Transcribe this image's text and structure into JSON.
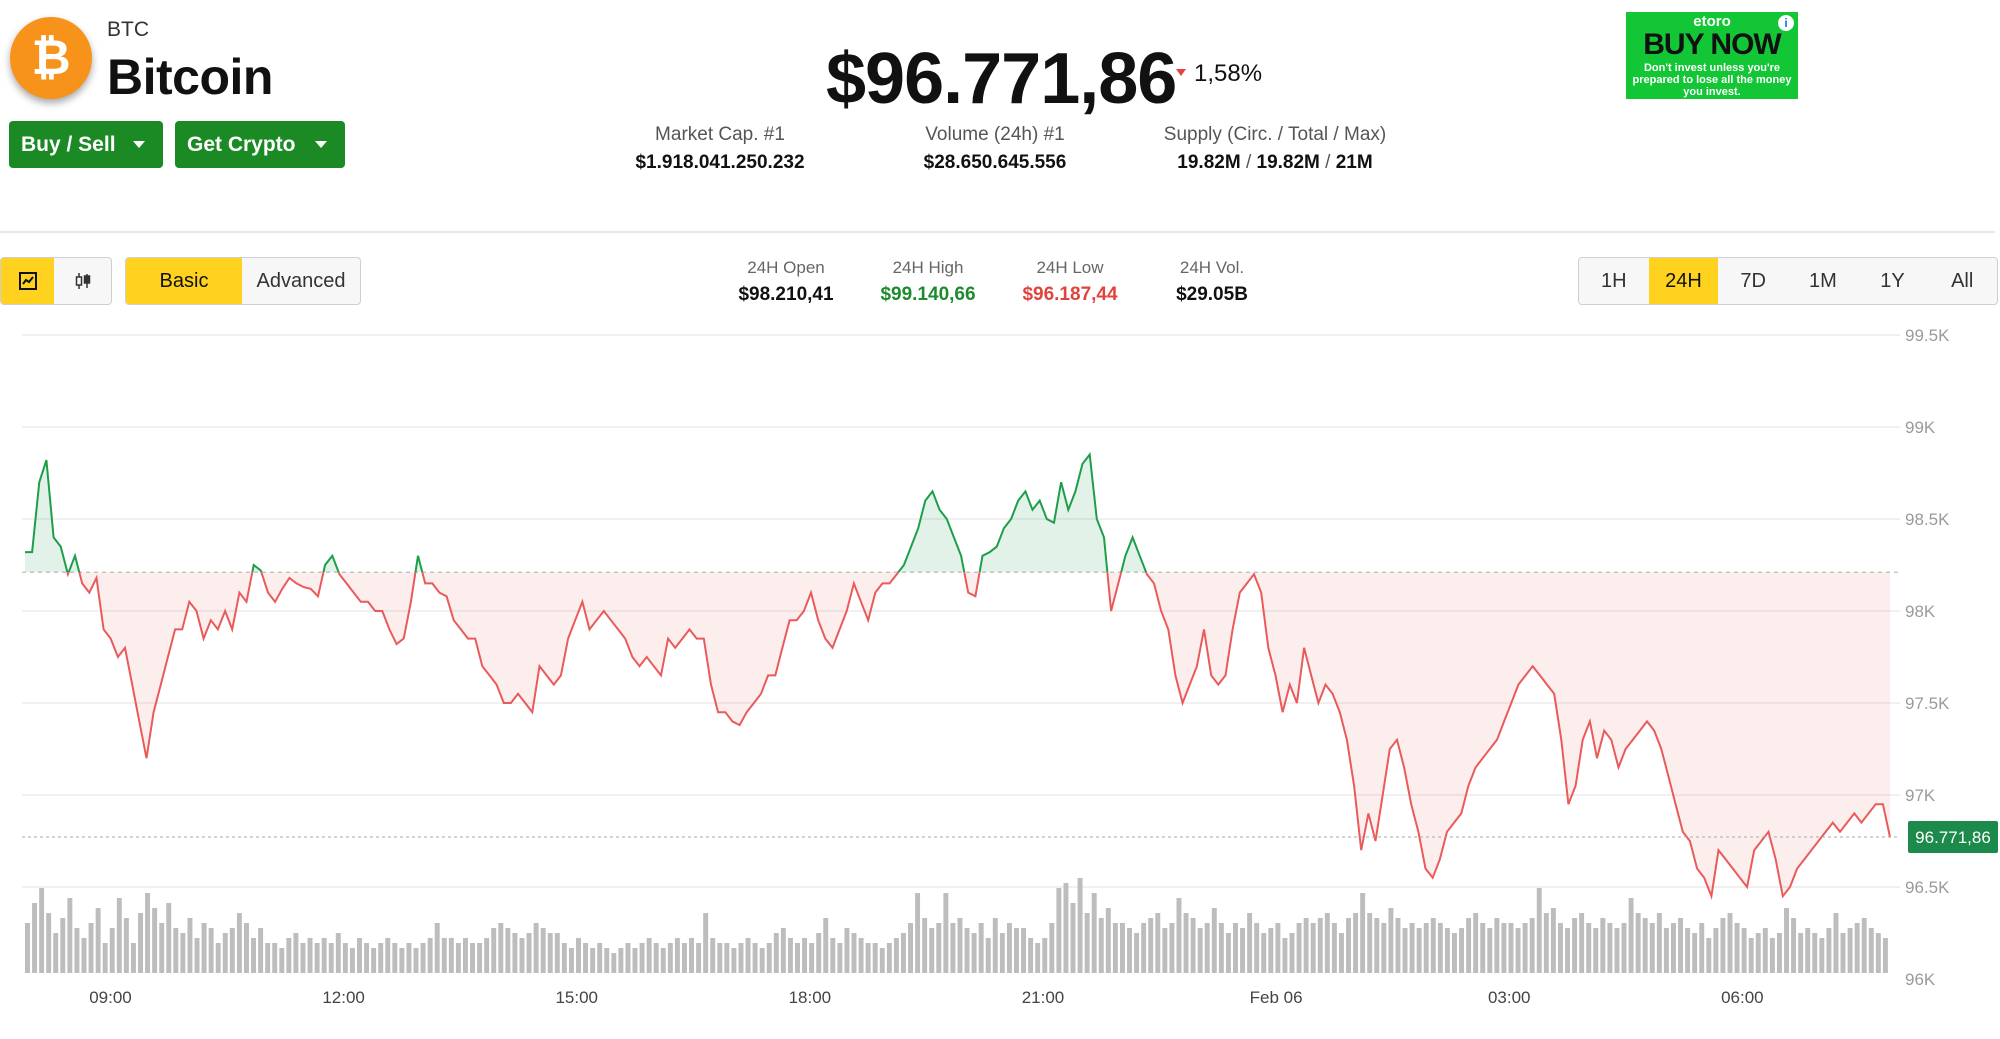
{
  "coin": {
    "symbol": "BTC",
    "name": "Bitcoin",
    "logo_glyph": "₿",
    "logo_color": "#f7931a"
  },
  "actions": {
    "buy_sell": "Buy / Sell",
    "get_crypto": "Get Crypto"
  },
  "price": {
    "value": "$96.771,86",
    "change": "1,58%",
    "change_direction": "down"
  },
  "stats": {
    "market_cap_label": "Market Cap. #1",
    "market_cap_value": "$1.918.041.250.232",
    "volume_label": "Volume (24h) #1",
    "volume_value": "$28.650.645.556",
    "supply_label": "Supply (Circ. / Total / Max)",
    "supply_circ": "19.82M",
    "supply_total": "19.82M",
    "supply_max": "21M",
    "supply_sep": "/"
  },
  "ad": {
    "brand": "etoro",
    "headline": "BUY NOW",
    "disclaimer": "Don't invest unless you're prepared to lose all the money you invest.",
    "info": "i"
  },
  "toolbar": {
    "chart_type_icons": [
      "line-chart-icon",
      "candlestick-icon"
    ],
    "modes": [
      "Basic",
      "Advanced"
    ],
    "active_mode": "Basic",
    "ranges": [
      "1H",
      "24H",
      "7D",
      "1M",
      "1Y",
      "All"
    ],
    "active_range": "24H"
  },
  "ohlc": {
    "open_label": "24H Open",
    "open_value": "$98.210,41",
    "high_label": "24H High",
    "high_value": "$99.140,66",
    "low_label": "24H Low",
    "low_value": "$96.187,44",
    "vol_label": "24H Vol.",
    "vol_value": "$29.05B"
  },
  "colors": {
    "up": "#1d9e4a",
    "down": "#ea5a5a",
    "accent": "#ffd21f",
    "button": "#1b8a25"
  },
  "chart_data": {
    "type": "line",
    "y_tick_labels": [
      "99.5K",
      "99K",
      "98.5K",
      "98K",
      "97.5K",
      "97K",
      "96.5K",
      "96K"
    ],
    "y_ticks": [
      99500,
      99000,
      98500,
      98000,
      97500,
      97000,
      96500,
      96000
    ],
    "ylim": [
      96000,
      99500
    ],
    "x_tick_labels": [
      "09:00",
      "12:00",
      "15:00",
      "18:00",
      "21:00",
      "Feb 06",
      "03:00",
      "06:00"
    ],
    "x_tick_hours": [
      1.1,
      4.1,
      7.1,
      10.1,
      13.1,
      16.1,
      19.1,
      22.1
    ],
    "x_range_hours": [
      0,
      24
    ],
    "baseline": 98210.41,
    "current_price_label": "96.771,86",
    "series": [
      {
        "values": [
          98320,
          98320,
          98700,
          98820,
          98400,
          98350,
          98200,
          98300,
          98150,
          98100,
          98180,
          97900,
          97850,
          97750,
          97800,
          97600,
          97400,
          97200,
          97450,
          97600,
          97750,
          97900,
          97900,
          98050,
          98000,
          97850,
          97950,
          97900,
          98000,
          97900,
          98100,
          98050,
          98250,
          98220,
          98100,
          98050,
          98120,
          98180,
          98150,
          98130,
          98120,
          98080,
          98250,
          98300,
          98200,
          98150,
          98100,
          98050,
          98050,
          98000,
          98000,
          97900,
          97820,
          97850,
          98050,
          98300,
          98150,
          98150,
          98100,
          98080,
          97950,
          97900,
          97850,
          97850,
          97700,
          97650,
          97600,
          97500,
          97500,
          97550,
          97500,
          97450,
          97700,
          97650,
          97600,
          97650,
          97850,
          97950,
          98050,
          97900,
          97950,
          98000,
          97950,
          97900,
          97850,
          97750,
          97700,
          97750,
          97700,
          97650,
          97850,
          97800,
          97850,
          97900,
          97850,
          97850,
          97600,
          97450,
          97450,
          97400,
          97380,
          97450,
          97500,
          97550,
          97650,
          97650,
          97800,
          97950,
          97950,
          98000,
          98100,
          97950,
          97850,
          97800,
          97900,
          98000,
          98150,
          98050,
          97950,
          98100,
          98150,
          98150,
          98200,
          98250,
          98350,
          98450,
          98600,
          98650,
          98550,
          98500,
          98400,
          98300,
          98100,
          98080,
          98300,
          98320,
          98350,
          98450,
          98500,
          98600,
          98650,
          98550,
          98600,
          98500,
          98480,
          98700,
          98550,
          98650,
          98800,
          98850,
          98500,
          98400,
          98000,
          98150,
          98300,
          98400,
          98300,
          98200,
          98150,
          98000,
          97900,
          97650,
          97500,
          97600,
          97700,
          97900,
          97650,
          97600,
          97650,
          97900,
          98100,
          98150,
          98200,
          98100,
          97800,
          97650,
          97450,
          97600,
          97500,
          97800,
          97650,
          97500,
          97600,
          97550,
          97450,
          97300,
          97050,
          96700,
          96900,
          96750,
          97000,
          97250,
          97300,
          97150,
          96950,
          96800,
          96600,
          96550,
          96650,
          96800,
          96850,
          96900,
          97050,
          97150,
          97200,
          97250,
          97300,
          97400,
          97500,
          97600,
          97650,
          97700,
          97650,
          97600,
          97550,
          97300,
          96950,
          97050,
          97300,
          97400,
          97200,
          97350,
          97300,
          97150,
          97250,
          97300,
          97350,
          97400,
          97350,
          97250,
          97100,
          96950,
          96800,
          96750,
          96600,
          96550,
          96450,
          96700,
          96650,
          96600,
          96550,
          96500,
          96700,
          96750,
          96800,
          96650,
          96450,
          96500,
          96600,
          96650,
          96700,
          96750,
          96800,
          96850,
          96800,
          96850,
          96900,
          96850,
          96900,
          96950,
          96950,
          96771.86
        ]
      }
    ],
    "volume_bars": [
      0.5,
      0.7,
      0.85,
      0.6,
      0.4,
      0.55,
      0.75,
      0.45,
      0.35,
      0.5,
      0.65,
      0.3,
      0.45,
      0.75,
      0.55,
      0.3,
      0.6,
      0.8,
      0.65,
      0.5,
      0.7,
      0.45,
      0.4,
      0.55,
      0.35,
      0.5,
      0.45,
      0.3,
      0.4,
      0.45,
      0.6,
      0.5,
      0.35,
      0.45,
      0.3,
      0.3,
      0.25,
      0.35,
      0.4,
      0.3,
      0.35,
      0.3,
      0.35,
      0.3,
      0.4,
      0.3,
      0.25,
      0.35,
      0.3,
      0.25,
      0.3,
      0.35,
      0.3,
      0.25,
      0.3,
      0.25,
      0.3,
      0.35,
      0.5,
      0.35,
      0.35,
      0.3,
      0.35,
      0.3,
      0.3,
      0.35,
      0.45,
      0.5,
      0.45,
      0.4,
      0.35,
      0.4,
      0.5,
      0.45,
      0.4,
      0.4,
      0.3,
      0.25,
      0.35,
      0.3,
      0.25,
      0.3,
      0.25,
      0.2,
      0.25,
      0.3,
      0.25,
      0.3,
      0.35,
      0.3,
      0.25,
      0.3,
      0.35,
      0.3,
      0.35,
      0.3,
      0.6,
      0.35,
      0.3,
      0.3,
      0.25,
      0.3,
      0.35,
      0.3,
      0.25,
      0.3,
      0.4,
      0.45,
      0.35,
      0.3,
      0.35,
      0.3,
      0.4,
      0.55,
      0.35,
      0.3,
      0.45,
      0.4,
      0.35,
      0.3,
      0.3,
      0.25,
      0.3,
      0.35,
      0.4,
      0.5,
      0.8,
      0.55,
      0.45,
      0.5,
      0.8,
      0.5,
      0.55,
      0.45,
      0.4,
      0.5,
      0.35,
      0.55,
      0.4,
      0.5,
      0.45,
      0.45,
      0.35,
      0.3,
      0.35,
      0.5,
      0.85,
      0.9,
      0.7,
      0.95,
      0.6,
      0.8,
      0.55,
      0.65,
      0.5,
      0.5,
      0.45,
      0.4,
      0.5,
      0.55,
      0.6,
      0.45,
      0.5,
      0.75,
      0.6,
      0.55,
      0.45,
      0.5,
      0.65,
      0.5,
      0.4,
      0.5,
      0.45,
      0.6,
      0.5,
      0.4,
      0.45,
      0.5,
      0.35,
      0.4,
      0.5,
      0.55,
      0.5,
      0.55,
      0.6,
      0.5,
      0.4,
      0.55,
      0.6,
      0.8,
      0.6,
      0.55,
      0.5,
      0.65,
      0.55,
      0.45,
      0.5,
      0.45,
      0.5,
      0.55,
      0.5,
      0.45,
      0.4,
      0.45,
      0.55,
      0.6,
      0.5,
      0.45,
      0.55,
      0.5,
      0.5,
      0.45,
      0.5,
      0.55,
      0.85,
      0.6,
      0.65,
      0.5,
      0.45,
      0.55,
      0.6,
      0.5,
      0.45,
      0.55,
      0.5,
      0.45,
      0.5,
      0.75,
      0.6,
      0.55,
      0.5,
      0.6,
      0.45,
      0.5,
      0.55,
      0.45,
      0.4,
      0.5,
      0.35,
      0.45,
      0.55,
      0.6,
      0.5,
      0.45,
      0.35,
      0.4,
      0.45,
      0.35,
      0.4,
      0.65,
      0.55,
      0.4,
      0.45,
      0.4,
      0.35,
      0.45,
      0.6,
      0.4,
      0.45,
      0.5,
      0.55,
      0.45,
      0.4,
      0.35
    ]
  }
}
